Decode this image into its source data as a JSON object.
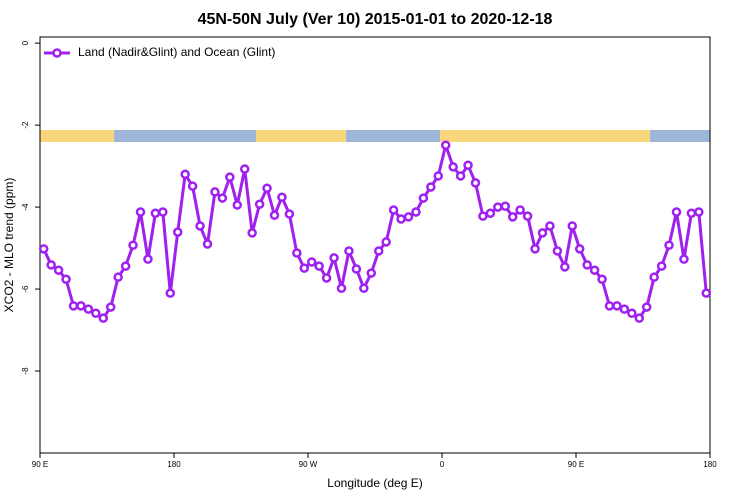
{
  "chart_data": {
    "type": "line",
    "title": "45N-50N July (Ver 10)   2015-01-01 to 2020-12-18",
    "xlabel": "Longitude (deg E)",
    "ylabel": "XCO2 - MLO trend (ppm)",
    "xlim": [
      90,
      540
    ],
    "ylim": [
      -10,
      0.15
    ],
    "xticks": [
      {
        "value": 90,
        "label": "90 E"
      },
      180,
      {
        "value": 270,
        "label": "90 W"
      },
      {
        "value": 360,
        "label": "0"
      },
      {
        "value": 450,
        "label": "90 E"
      },
      {
        "value": 540,
        "label": "180"
      }
    ],
    "yticks": [
      0,
      -2,
      -4,
      -6,
      -8
    ],
    "legend": "top-left",
    "x": [
      92.5,
      97.5,
      102.5,
      107.5,
      112.5,
      117.5,
      122.5,
      127.5,
      132.5,
      137.5,
      142.5,
      147.5,
      152.5,
      157.5,
      162.5,
      167.5,
      172.5,
      177.5,
      182.5,
      187.5,
      192.5,
      197.5,
      202.5,
      207.5,
      212.5,
      217.5,
      222.5,
      227.5,
      232.5,
      237.5,
      242.5,
      247.5,
      252.5,
      257.5,
      262.5,
      267.5,
      272.5,
      277.5,
      282.5,
      287.5,
      292.5,
      297.5,
      302.5,
      307.5,
      312.5,
      317.5,
      322.5,
      327.5,
      332.5,
      337.5,
      342.5,
      347.5,
      352.5,
      357.5,
      362.5,
      367.5,
      372.5,
      377.5,
      382.5,
      387.5,
      392.5,
      397.5,
      402.5,
      407.5,
      412.5,
      417.5,
      422.5,
      427.5,
      432.5,
      437.5,
      442.5,
      447.5,
      452.5,
      457.5,
      462.5,
      467.5,
      472.5,
      477.5,
      482.5,
      487.5,
      492.5,
      497.5,
      502.5,
      507.5,
      512.5,
      517.5,
      522.5,
      527.5,
      532.5,
      537.5
    ],
    "series": [
      {
        "name": "Land (Nadir&Glint) and Ocean (Glint)",
        "color": "#a020f0",
        "values": [
          -5.02,
          -5.41,
          -5.54,
          -5.76,
          -6.41,
          -6.41,
          -6.49,
          -6.59,
          -6.71,
          -6.44,
          -5.71,
          -5.44,
          -4.93,
          -4.12,
          -5.27,
          -4.15,
          -4.12,
          -6.1,
          -4.61,
          -3.2,
          -3.49,
          -4.46,
          -4.9,
          -3.63,
          -3.78,
          -3.27,
          -3.95,
          -3.07,
          -4.63,
          -3.93,
          -3.54,
          -4.2,
          -3.76,
          -4.17,
          -5.12,
          -5.49,
          -5.34,
          -5.44,
          -5.73,
          -5.24,
          -5.98,
          -5.07,
          -5.51,
          -5.98,
          -5.61,
          -5.07,
          -4.85,
          -4.07,
          -4.29,
          -4.24,
          -4.12,
          -3.78,
          -3.51,
          -3.24,
          -2.49,
          -3.02,
          -3.24,
          -2.98,
          -3.41,
          -4.22,
          -4.15,
          -4.0,
          -3.98,
          -4.24,
          -4.07,
          -4.22,
          -5.02,
          -4.63,
          -4.46,
          -5.07,
          -5.46,
          -4.46,
          -5.02,
          -5.41,
          -5.54,
          -5.76,
          -6.41,
          -6.41,
          -6.49,
          -6.59,
          -6.71,
          -6.44,
          -5.71,
          -5.44,
          -4.93,
          -4.12,
          -5.27,
          -4.15,
          -4.12,
          -6.1
        ]
      }
    ]
  }
}
